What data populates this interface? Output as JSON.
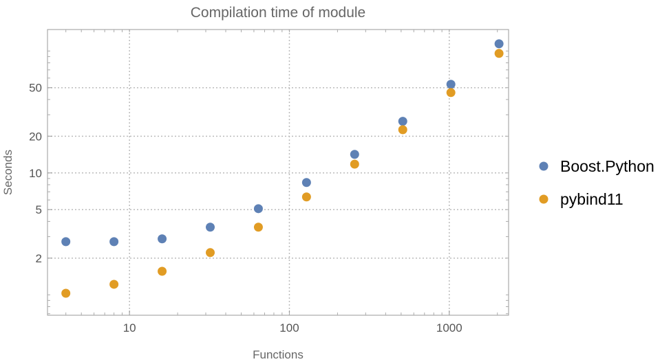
{
  "chart_data": {
    "type": "scatter",
    "title": "Compilation time of module",
    "xlabel": "Functions",
    "ylabel": "Seconds",
    "xscale": "log",
    "yscale": "log",
    "xlim": [
      3.07,
      2350
    ],
    "ylim": [
      0.68,
      150
    ],
    "xticks": [
      10,
      100,
      1000
    ],
    "xtick_labels": [
      "10",
      "100",
      "1000"
    ],
    "yticks": [
      2,
      5,
      10,
      20,
      50
    ],
    "ytick_labels": [
      "2",
      "5",
      "10",
      "20",
      "50"
    ],
    "grid": true,
    "legend_position": "right",
    "x": [
      4,
      8,
      16,
      32,
      64,
      128,
      256,
      512,
      1024,
      2048
    ],
    "series": [
      {
        "name": "Boost.Python",
        "color": "#5e81b5",
        "values": [
          2.73,
          2.73,
          2.88,
          3.59,
          5.09,
          8.34,
          14.2,
          26.5,
          53.3,
          114.6
        ]
      },
      {
        "name": "pybind11",
        "color": "#e19c24",
        "values": [
          1.03,
          1.22,
          1.56,
          2.22,
          3.59,
          6.35,
          11.8,
          22.6,
          45.6,
          95.5
        ]
      }
    ]
  }
}
